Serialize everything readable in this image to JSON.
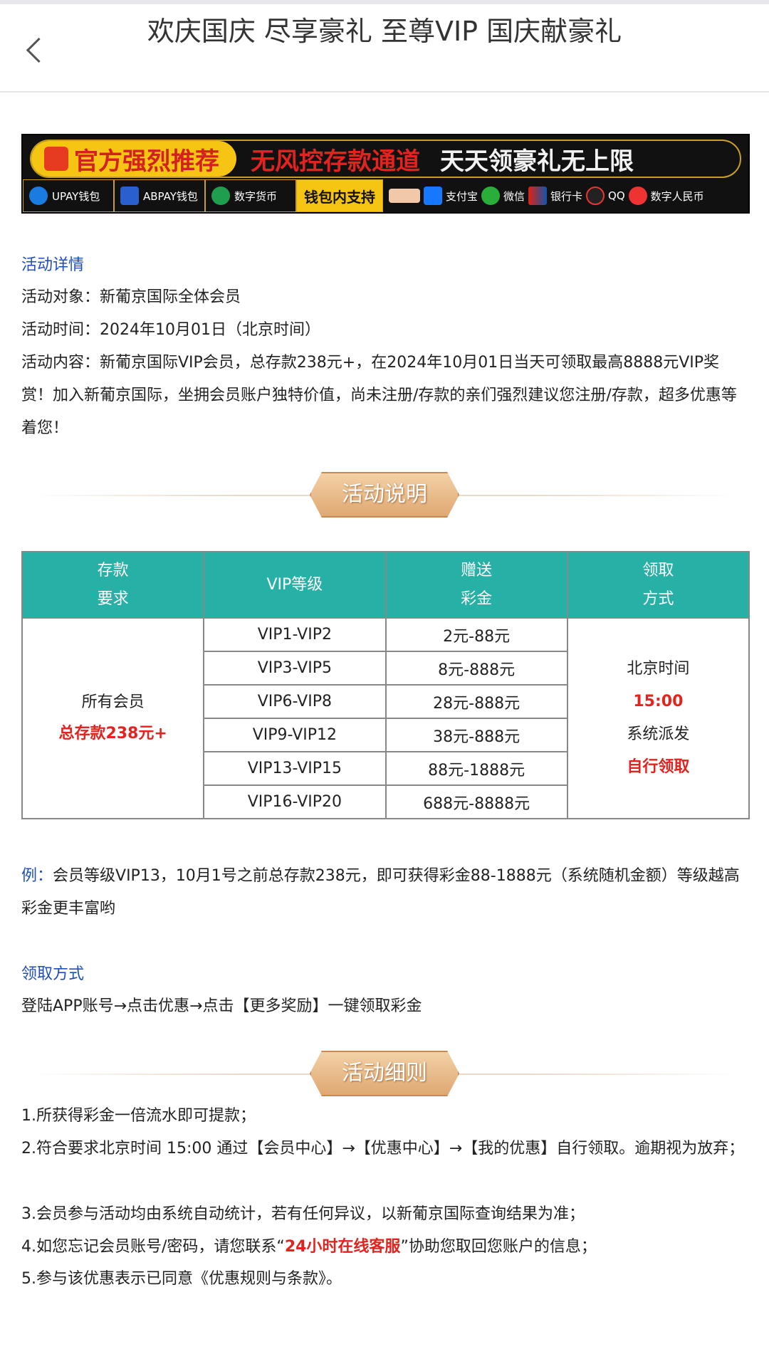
{
  "header": {
    "title": "欢庆国庆 尽享豪礼 至尊VIP 国庆献豪礼"
  },
  "banner": {
    "recommend": "官方强烈推荐",
    "channel": "无风控存款通道",
    "daily": "天天领豪礼无上限",
    "wallets": [
      "UPAY钱包",
      "ABPAY钱包",
      "数字货币"
    ],
    "support": "钱包内支持",
    "methods": [
      "支付宝",
      "微信",
      "银行卡",
      "QQ",
      "数字人民币"
    ]
  },
  "details": {
    "heading": "活动详情",
    "target": "活动对象：新葡京国际全体会员",
    "time": "活动时间：2024年10月01日（北京时间）",
    "content": "活动内容：新葡京国际VIP会员，总存款238元+，在2024年10月01日当天可领取最高8888元VIP奖赏！加入新葡京国际，坐拥会员账户独特价值，尚未注册/存款的亲们强烈建议您注册/存款，超多优惠等着您！"
  },
  "section1": "活动说明",
  "table": {
    "headers": [
      "存款要求",
      "VIP等级",
      "赠送彩金",
      "领取方式"
    ],
    "headers_lines": [
      [
        "存款",
        "要求"
      ],
      [
        "VIP等级"
      ],
      [
        "赠送",
        "彩金"
      ],
      [
        "领取",
        "方式"
      ]
    ],
    "req_line1": "所有会员",
    "req_line2": "总存款238元+",
    "rows": [
      {
        "level": "VIP1-VIP2",
        "bonus": "2元-88元"
      },
      {
        "level": "VIP3-VIP5",
        "bonus": "8元-888元"
      },
      {
        "level": "VIP6-VIP8",
        "bonus": "28元-888元"
      },
      {
        "level": "VIP9-VIP12",
        "bonus": "38元-888元"
      },
      {
        "level": "VIP13-VIP15",
        "bonus": "88元-1888元"
      },
      {
        "level": "VIP16-VIP20",
        "bonus": "688元-8888元"
      }
    ],
    "method": [
      "北京时间",
      "15:00",
      "系统派发",
      "自行领取"
    ]
  },
  "example": {
    "label": "例：",
    "text": "会员等级VIP13，10月1号之前总存款238元，即可获得彩金88-1888元（系统随机金额）等级越高彩金更丰富哟"
  },
  "claim": {
    "heading": "领取方式",
    "text": "登陆APP账号→点击优惠→点击【更多奖励】一键领取彩金"
  },
  "section2": "活动细则",
  "rules": [
    "1.所获得彩金一倍流水即可提款；",
    "2.符合要求北京时间 15:00 通过【会员中心】→【优惠中心】→【我的优惠】自行领取。逾期视为放弃；",
    "3.会员参与活动均由系统自动统计，若有任何异议，以新葡京国际查询结果为准；"
  ],
  "rule4": {
    "pre": "4.如您忘记会员账号/密码，请您联系“",
    "highlight": "24小时在线客服",
    "post": "”协助您取回您账户的信息；"
  },
  "rule5": "5.参与该优惠表示已同意《优惠规则与条款》。"
}
